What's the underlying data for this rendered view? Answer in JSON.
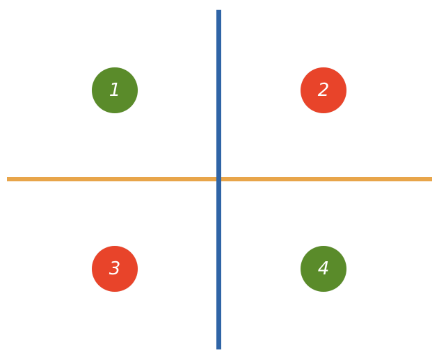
{
  "colors": {
    "horizontal_axis": "#E8A54A",
    "vertical_axis": "#2F64A6",
    "green": "#5A8B2A",
    "red": "#E8442A"
  },
  "quadrants": [
    {
      "label": "1",
      "color": "green"
    },
    {
      "label": "2",
      "color": "red"
    },
    {
      "label": "3",
      "color": "red"
    },
    {
      "label": "4",
      "color": "green"
    }
  ]
}
